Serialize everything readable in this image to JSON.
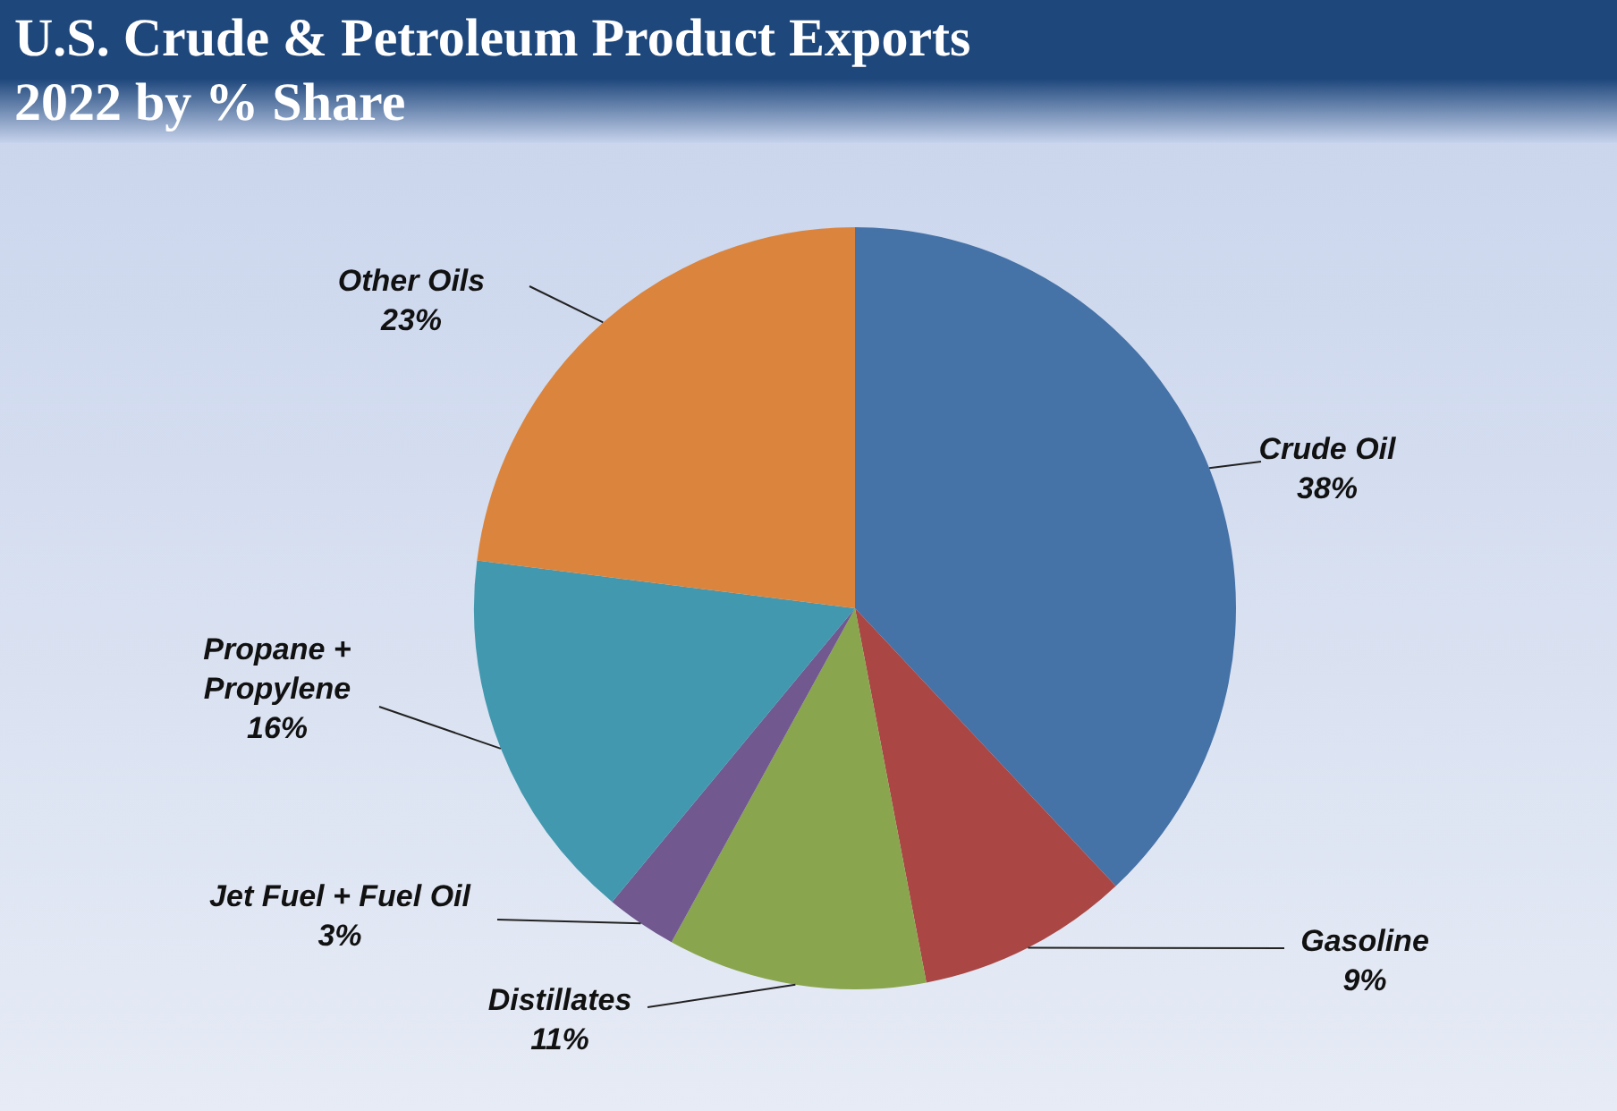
{
  "chart_data": {
    "type": "pie",
    "title": "U.S. Crude & Petroleum Product Exports\n2022 by % Share",
    "categories": [
      "Crude Oil",
      "Gasoline",
      "Distillates",
      "Jet Fuel + Fuel Oil",
      "Propane + Propylene",
      "Other Oils"
    ],
    "values": [
      38,
      9,
      11,
      3,
      16,
      23
    ],
    "colors": [
      "#4572a7",
      "#aa4643",
      "#89a54e",
      "#71588f",
      "#4198af",
      "#db843d"
    ],
    "value_labels": [
      "38%",
      "9%",
      "11%",
      "3%",
      "16%",
      "23%"
    ],
    "legend": false
  }
}
